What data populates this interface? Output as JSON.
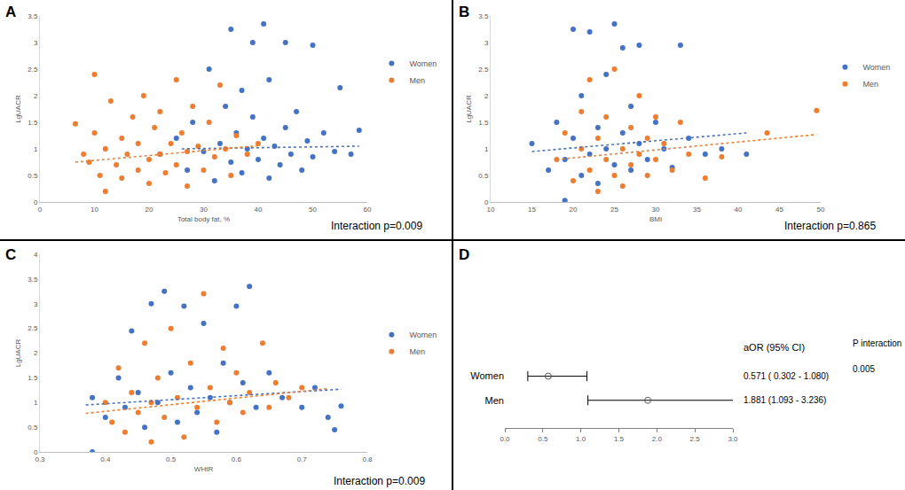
{
  "chart_data": [
    {
      "type": "scatter",
      "panel_label": "A",
      "x_label": "Total body fat, %",
      "y_label": "LgUACR",
      "xlim": [
        0,
        60
      ],
      "xticks": [
        0,
        10,
        20,
        30,
        40,
        50,
        60
      ],
      "ylim": [
        0,
        3.5
      ],
      "yticks": [
        0,
        0.5,
        1,
        1.5,
        2,
        2.5,
        3,
        3.5
      ],
      "grid": false,
      "legend": "right",
      "annotations": [
        "Interaction p=0.009"
      ],
      "series": [
        {
          "name": "Women",
          "color": "#4472C4",
          "marker": "circle",
          "x": [
            22,
            25,
            27,
            28,
            30,
            31,
            32,
            33,
            34,
            35,
            35,
            36,
            37,
            37,
            38,
            39,
            39,
            40,
            41,
            41,
            42,
            42,
            43,
            44,
            45,
            45,
            46,
            47,
            48,
            49,
            50,
            50,
            52,
            54,
            55,
            57,
            58.5
          ],
          "values": [
            0.9,
            1.2,
            0.6,
            1.5,
            0.95,
            2.5,
            0.4,
            1.1,
            1.8,
            0.75,
            3.25,
            1.3,
            0.55,
            2.1,
            1.0,
            3.0,
            1.6,
            0.8,
            3.35,
            1.2,
            0.45,
            2.3,
            1.05,
            0.7,
            1.4,
            3.0,
            0.9,
            1.7,
            0.6,
            1.15,
            2.95,
            0.85,
            1.3,
            0.95,
            2.15,
            0.9,
            1.35
          ]
        },
        {
          "name": "Men",
          "color": "#ED7D31",
          "marker": "circle",
          "x": [
            6.5,
            8,
            9,
            10,
            10,
            11,
            12,
            12,
            13,
            14,
            15,
            15,
            16,
            17,
            18,
            18,
            19,
            20,
            20,
            21,
            22,
            22,
            23,
            24,
            25,
            25,
            26,
            27,
            27,
            28,
            29,
            30,
            31,
            32,
            33,
            34,
            35,
            36,
            38,
            40
          ],
          "values": [
            1.47,
            0.9,
            0.75,
            2.4,
            1.3,
            0.5,
            1.0,
            0.2,
            1.9,
            0.7,
            1.2,
            0.45,
            0.9,
            1.6,
            0.6,
            1.1,
            2.0,
            0.8,
            0.35,
            1.4,
            0.9,
            1.7,
            0.55,
            1.1,
            2.3,
            0.7,
            1.3,
            0.95,
            0.3,
            1.8,
            1.05,
            0.6,
            1.5,
            0.85,
            2.2,
            1.0,
            0.5,
            1.25,
            0.9,
            1.1
          ]
        }
      ],
      "trend_lines": [
        {
          "color": "#4472C4",
          "line_style": "dotted",
          "x": [
            26,
            58.5
          ],
          "values": [
            1.0,
            1.05
          ]
        },
        {
          "color": "#ED7D31",
          "line_style": "dotted",
          "x": [
            6.5,
            40
          ],
          "values": [
            0.75,
            1.06
          ]
        }
      ]
    },
    {
      "type": "scatter",
      "panel_label": "B",
      "x_label": "BMI",
      "y_label": "LgUACR",
      "xlim": [
        10,
        50
      ],
      "xticks": [
        10,
        15,
        20,
        25,
        30,
        35,
        40,
        45,
        50
      ],
      "ylim": [
        0,
        3.5
      ],
      "yticks": [
        0,
        0.5,
        1,
        1.5,
        2,
        2.5,
        3,
        3.5
      ],
      "grid": false,
      "legend": "right",
      "annotations": [
        "Interaction p=0.865"
      ],
      "series": [
        {
          "name": "Women",
          "color": "#4472C4",
          "marker": "circle",
          "x": [
            15,
            17,
            18,
            19,
            19,
            20,
            20,
            21,
            21,
            22,
            22,
            23,
            23,
            24,
            24,
            25,
            25,
            26,
            26,
            27,
            27,
            28,
            28,
            29,
            30,
            31,
            32,
            33,
            34,
            36,
            38,
            41
          ],
          "values": [
            1.1,
            0.6,
            1.5,
            0.8,
            0.03,
            1.2,
            3.25,
            0.5,
            2.0,
            0.9,
            3.2,
            1.4,
            0.35,
            1.0,
            2.4,
            0.7,
            3.35,
            1.3,
            2.9,
            0.6,
            1.8,
            1.1,
            2.95,
            0.8,
            1.5,
            1.0,
            0.65,
            2.95,
            1.2,
            0.9,
            1.0,
            0.9
          ]
        },
        {
          "name": "Men",
          "color": "#ED7D31",
          "marker": "circle",
          "x": [
            18,
            19,
            20,
            21,
            21,
            22,
            22,
            23,
            23,
            24,
            24,
            25,
            25,
            26,
            26,
            27,
            27,
            28,
            28,
            29,
            29,
            30,
            30,
            31,
            32,
            33,
            34,
            36,
            38,
            43.5,
            49.5
          ],
          "values": [
            0.8,
            1.3,
            0.4,
            1.0,
            1.7,
            0.6,
            2.3,
            1.2,
            0.2,
            0.8,
            1.6,
            0.5,
            2.5,
            1.0,
            0.3,
            1.4,
            0.7,
            2.0,
            0.9,
            1.2,
            0.5,
            1.6,
            0.8,
            1.1,
            0.6,
            1.5,
            0.9,
            0.45,
            0.85,
            1.3,
            1.72
          ]
        }
      ],
      "trend_lines": [
        {
          "color": "#4472C4",
          "line_style": "dotted",
          "x": [
            15,
            41
          ],
          "values": [
            0.95,
            1.3
          ]
        },
        {
          "color": "#ED7D31",
          "line_style": "dotted",
          "x": [
            18,
            49.5
          ],
          "values": [
            0.8,
            1.27
          ]
        }
      ]
    },
    {
      "type": "scatter",
      "panel_label": "C",
      "x_label": "WHtR",
      "y_label": "LgUACR",
      "xlim": [
        0.3,
        0.8
      ],
      "xticks": [
        0.3,
        0.4,
        0.5,
        0.6,
        0.7,
        0.8
      ],
      "ylim": [
        0,
        4
      ],
      "yticks": [
        0,
        0.5,
        1,
        1.5,
        2,
        2.5,
        3,
        3.5,
        4
      ],
      "grid": false,
      "legend": "right",
      "annotations": [
        "Interaction p=0.009"
      ],
      "series": [
        {
          "name": "Women",
          "color": "#4472C4",
          "marker": "circle",
          "x": [
            0.38,
            0.38,
            0.4,
            0.42,
            0.43,
            0.44,
            0.45,
            0.46,
            0.47,
            0.48,
            0.49,
            0.5,
            0.51,
            0.52,
            0.53,
            0.54,
            0.55,
            0.56,
            0.57,
            0.58,
            0.59,
            0.6,
            0.61,
            0.62,
            0.63,
            0.65,
            0.67,
            0.7,
            0.72,
            0.74,
            0.75,
            0.76
          ],
          "values": [
            0.0,
            1.1,
            0.7,
            1.5,
            0.9,
            2.45,
            1.2,
            0.5,
            3.0,
            1.0,
            3.25,
            1.6,
            0.6,
            2.95,
            1.3,
            0.8,
            2.6,
            1.1,
            0.4,
            1.8,
            1.0,
            2.95,
            1.4,
            3.35,
            0.9,
            1.6,
            1.1,
            0.9,
            1.3,
            0.7,
            0.45,
            0.93
          ]
        },
        {
          "name": "Men",
          "color": "#ED7D31",
          "marker": "circle",
          "x": [
            0.4,
            0.41,
            0.42,
            0.43,
            0.44,
            0.45,
            0.46,
            0.47,
            0.47,
            0.48,
            0.49,
            0.5,
            0.51,
            0.52,
            0.53,
            0.54,
            0.55,
            0.56,
            0.57,
            0.58,
            0.59,
            0.6,
            0.61,
            0.62,
            0.64,
            0.65,
            0.66,
            0.68,
            0.7
          ],
          "values": [
            1.0,
            0.6,
            1.7,
            0.4,
            1.2,
            0.8,
            2.2,
            1.0,
            0.2,
            1.5,
            0.7,
            2.5,
            1.1,
            0.3,
            1.8,
            0.9,
            3.2,
            1.3,
            0.6,
            2.1,
            1.0,
            1.6,
            0.8,
            1.2,
            2.2,
            0.9,
            1.4,
            1.1,
            1.3
          ]
        }
      ],
      "trend_lines": [
        {
          "color": "#4472C4",
          "line_style": "dotted",
          "x": [
            0.37,
            0.76
          ],
          "values": [
            0.95,
            1.27
          ]
        },
        {
          "color": "#ED7D31",
          "line_style": "dotted",
          "x": [
            0.37,
            0.74
          ],
          "values": [
            0.78,
            1.28
          ]
        }
      ]
    },
    {
      "type": "forest",
      "panel_label": "D",
      "categories": [
        "Women",
        "Men"
      ],
      "values": [
        0.571,
        1.881
      ],
      "ci_low": [
        0.302,
        1.093
      ],
      "ci_high": [
        1.08,
        3.236
      ],
      "value_labels": [
        "0.571 ( 0.302 - 1.080)",
        "1.881 (1.093 - 3.236)"
      ],
      "column_headers": [
        "aOR (95% CI)",
        "P interaction"
      ],
      "p_values": [
        0.005,
        null
      ],
      "xlim": [
        0,
        3
      ],
      "xticks": [
        {
          "value": 0,
          "label": "0.0"
        },
        {
          "value": 0.5,
          "label": "0.5"
        },
        {
          "value": 1,
          "label": "1.0"
        },
        {
          "value": 1.5,
          "label": "1.5"
        },
        {
          "value": 2,
          "label": "2.0"
        },
        {
          "value": 2.5,
          "label": "2.5"
        },
        {
          "value": 3,
          "label": "3.0"
        }
      ],
      "marker": "circle-open",
      "color": "#595959",
      "grid": false
    }
  ]
}
